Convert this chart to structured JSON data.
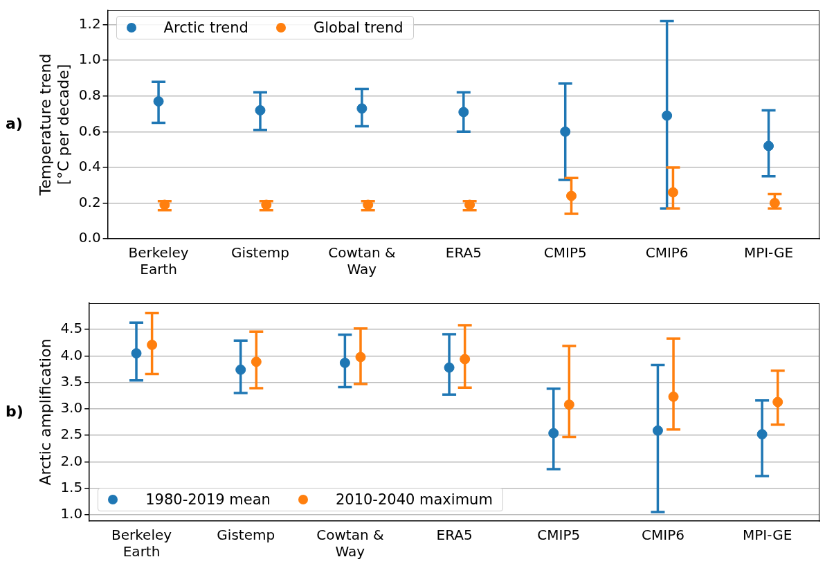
{
  "chart_data": [
    {
      "type": "scatter",
      "ylabel": "Temperature trend\n[°C per decade]",
      "annotations": [
        "a)"
      ],
      "categories": [
        "Berkeley Earth",
        "Gistemp",
        "Cowtan & Way",
        "ERA5",
        "CMIP5",
        "CMIP6",
        "MPI-GE"
      ],
      "series": [
        {
          "name": "Arctic trend",
          "color": "#1f77b4",
          "values": [
            0.77,
            0.72,
            0.73,
            0.71,
            0.6,
            0.69,
            0.52
          ],
          "errors": [
            [
              0.65,
              0.88
            ],
            [
              0.61,
              0.82
            ],
            [
              0.63,
              0.84
            ],
            [
              0.6,
              0.82
            ],
            [
              0.33,
              0.87
            ],
            [
              0.17,
              1.22
            ],
            [
              0.35,
              0.72
            ]
          ]
        },
        {
          "name": "Global trend",
          "color": "#ff7f0e",
          "values": [
            0.19,
            0.19,
            0.19,
            0.19,
            0.24,
            0.26,
            0.2
          ],
          "errors": [
            [
              0.16,
              0.21
            ],
            [
              0.16,
              0.21
            ],
            [
              0.16,
              0.21
            ],
            [
              0.16,
              0.21
            ],
            [
              0.14,
              0.34
            ],
            [
              0.17,
              0.4
            ],
            [
              0.17,
              0.25
            ]
          ]
        }
      ],
      "ylim": [
        0,
        1.28
      ],
      "yticks": [
        {
          "value": 0,
          "label": "0.0"
        },
        {
          "value": 0.2,
          "label": "0.2"
        },
        {
          "value": 0.4,
          "label": "0.4"
        },
        {
          "value": 0.6,
          "label": "0.6"
        },
        {
          "value": 0.8,
          "label": "0.8"
        },
        {
          "value": 1.0,
          "label": "1.0"
        },
        {
          "value": 1.2,
          "label": "1.2"
        }
      ],
      "grid": "y",
      "legend": "top left",
      "marker": "circle"
    },
    {
      "type": "scatter",
      "ylabel": "Arctic amplification",
      "annotations": [
        "b)"
      ],
      "categories": [
        "Berkeley Earth",
        "Gistemp",
        "Cowtan & Way",
        "ERA5",
        "CMIP5",
        "CMIP6",
        "MPI-GE"
      ],
      "series": [
        {
          "name": "1980-2019 mean",
          "color": "#1f77b4",
          "values": [
            4.05,
            3.74,
            3.87,
            3.78,
            2.54,
            2.59,
            2.52
          ],
          "errors": [
            [
              3.54,
              4.63
            ],
            [
              3.3,
              4.29
            ],
            [
              3.41,
              4.4
            ],
            [
              3.27,
              4.41
            ],
            [
              1.86,
              3.38
            ],
            [
              1.05,
              3.83
            ],
            [
              1.73,
              3.16
            ]
          ]
        },
        {
          "name": "2010-2040 maximum",
          "color": "#ff7f0e",
          "values": [
            4.21,
            3.89,
            3.98,
            3.94,
            3.08,
            3.23,
            3.13
          ],
          "errors": [
            [
              3.66,
              4.81
            ],
            [
              3.39,
              4.46
            ],
            [
              3.47,
              4.52
            ],
            [
              3.4,
              4.58
            ],
            [
              2.47,
              4.19
            ],
            [
              2.61,
              4.33
            ],
            [
              2.7,
              3.72
            ]
          ]
        }
      ],
      "ylim": [
        0.88,
        5.0
      ],
      "yticks": [
        {
          "value": 1.0,
          "label": "1.0"
        },
        {
          "value": 1.5,
          "label": "1.5"
        },
        {
          "value": 2.0,
          "label": "2.0"
        },
        {
          "value": 2.5,
          "label": "2.5"
        },
        {
          "value": 3.0,
          "label": "3.0"
        },
        {
          "value": 3.5,
          "label": "3.5"
        },
        {
          "value": 4.0,
          "label": "4.0"
        },
        {
          "value": 4.5,
          "label": "4.5"
        }
      ],
      "grid": "y",
      "legend": "bottom left",
      "marker": "circle"
    }
  ]
}
